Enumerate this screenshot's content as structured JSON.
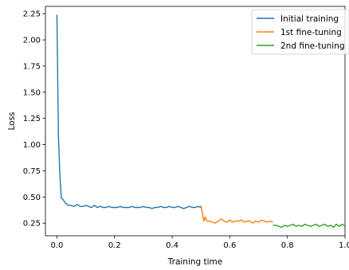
{
  "chart_data": {
    "type": "line",
    "title": "",
    "xlabel": "Training time",
    "ylabel": "Loss",
    "xlim": [
      -0.04,
      1.0
    ],
    "ylim": [
      0.13,
      2.32
    ],
    "xticks": [
      0.0,
      0.2,
      0.4,
      0.6,
      0.8,
      1.0
    ],
    "xtick_labels": [
      "0.0",
      "0.2",
      "0.4",
      "0.6",
      "0.8",
      "1.0"
    ],
    "yticks": [
      0.25,
      0.5,
      0.75,
      1.0,
      1.25,
      1.5,
      1.75,
      2.0,
      2.25
    ],
    "ytick_labels": [
      "0.25",
      "0.50",
      "0.75",
      "1.00",
      "1.25",
      "1.50",
      "1.75",
      "2.00",
      "2.25"
    ],
    "grid": false,
    "legend_position": "top-right",
    "series": [
      {
        "name": "Initial training",
        "color": "#1f77b4",
        "x": [
          0.0,
          0.005,
          0.01,
          0.015,
          0.02,
          0.03,
          0.04,
          0.05,
          0.06,
          0.07,
          0.08,
          0.09,
          0.1,
          0.11,
          0.12,
          0.13,
          0.14,
          0.15,
          0.16,
          0.17,
          0.18,
          0.19,
          0.2,
          0.21,
          0.22,
          0.23,
          0.24,
          0.25,
          0.26,
          0.27,
          0.28,
          0.29,
          0.3,
          0.31,
          0.32,
          0.33,
          0.34,
          0.35,
          0.36,
          0.37,
          0.38,
          0.39,
          0.4,
          0.41,
          0.42,
          0.43,
          0.44,
          0.45,
          0.46,
          0.47,
          0.48,
          0.49,
          0.5
        ],
        "y": [
          2.24,
          1.1,
          0.72,
          0.49,
          0.48,
          0.44,
          0.42,
          0.42,
          0.41,
          0.43,
          0.41,
          0.41,
          0.42,
          0.41,
          0.4,
          0.42,
          0.4,
          0.41,
          0.4,
          0.4,
          0.41,
          0.4,
          0.4,
          0.4,
          0.41,
          0.4,
          0.4,
          0.4,
          0.41,
          0.4,
          0.4,
          0.4,
          0.41,
          0.4,
          0.4,
          0.39,
          0.4,
          0.4,
          0.41,
          0.4,
          0.4,
          0.41,
          0.4,
          0.4,
          0.41,
          0.4,
          0.39,
          0.4,
          0.41,
          0.4,
          0.4,
          0.41,
          0.4
        ]
      },
      {
        "name": "1st fine-tuning",
        "color": "#ff7f0e",
        "x": [
          0.5,
          0.51,
          0.515,
          0.52,
          0.53,
          0.54,
          0.55,
          0.56,
          0.57,
          0.58,
          0.59,
          0.6,
          0.61,
          0.62,
          0.63,
          0.64,
          0.65,
          0.66,
          0.67,
          0.68,
          0.69,
          0.7,
          0.71,
          0.72,
          0.73,
          0.74,
          0.75
        ],
        "y": [
          0.42,
          0.27,
          0.31,
          0.27,
          0.27,
          0.26,
          0.25,
          0.27,
          0.29,
          0.27,
          0.26,
          0.28,
          0.26,
          0.27,
          0.27,
          0.28,
          0.26,
          0.27,
          0.27,
          0.25,
          0.27,
          0.26,
          0.28,
          0.27,
          0.26,
          0.27,
          0.26
        ]
      },
      {
        "name": "2nd fine-tuning",
        "color": "#2ca02c",
        "x": [
          0.75,
          0.76,
          0.77,
          0.78,
          0.79,
          0.8,
          0.81,
          0.82,
          0.83,
          0.84,
          0.85,
          0.86,
          0.87,
          0.88,
          0.89,
          0.9,
          0.91,
          0.92,
          0.93,
          0.94,
          0.95,
          0.96,
          0.97,
          0.98,
          0.99,
          1.0
        ],
        "y": [
          0.23,
          0.23,
          0.22,
          0.21,
          0.23,
          0.22,
          0.23,
          0.24,
          0.22,
          0.23,
          0.22,
          0.24,
          0.23,
          0.22,
          0.23,
          0.24,
          0.22,
          0.23,
          0.24,
          0.22,
          0.23,
          0.21,
          0.24,
          0.22,
          0.24,
          0.22
        ]
      }
    ]
  }
}
